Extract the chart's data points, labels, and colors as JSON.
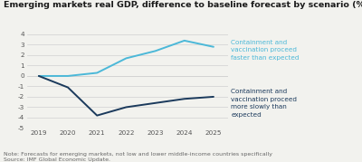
{
  "title": "Emerging markets real GDP, difference to baseline forecast by scenario (%)",
  "years": [
    2019,
    2020,
    2021,
    2022,
    2023,
    2024,
    2025
  ],
  "fast_scenario": [
    0,
    0.0,
    0.3,
    1.7,
    2.4,
    3.4,
    2.8
  ],
  "slow_scenario": [
    0,
    -1.1,
    -3.8,
    -3.0,
    -2.6,
    -2.2,
    -2.0
  ],
  "fast_color": "#4BB8D8",
  "slow_color": "#1B3A5C",
  "fast_label": "Containment and\nvaccination proceed\nfaster than expected",
  "slow_label": "Containment and\nvaccination proceed\nmore slowly than\nexpected",
  "ylim": [
    -5,
    4.5
  ],
  "yticks": [
    -5,
    -4,
    -3,
    -2,
    -1,
    0,
    1,
    2,
    3,
    4
  ],
  "note": "Note: Forecasts for emerging markets, not low and lower middle-income countries specifically",
  "source": "Source: IMF Global Economic Update.",
  "background_color": "#f2f2ee",
  "grid_color": "#d0d0d0",
  "title_fontsize": 6.8,
  "label_fontsize": 5.2,
  "note_fontsize": 4.5,
  "tick_fontsize": 5.2,
  "line_width": 1.4
}
